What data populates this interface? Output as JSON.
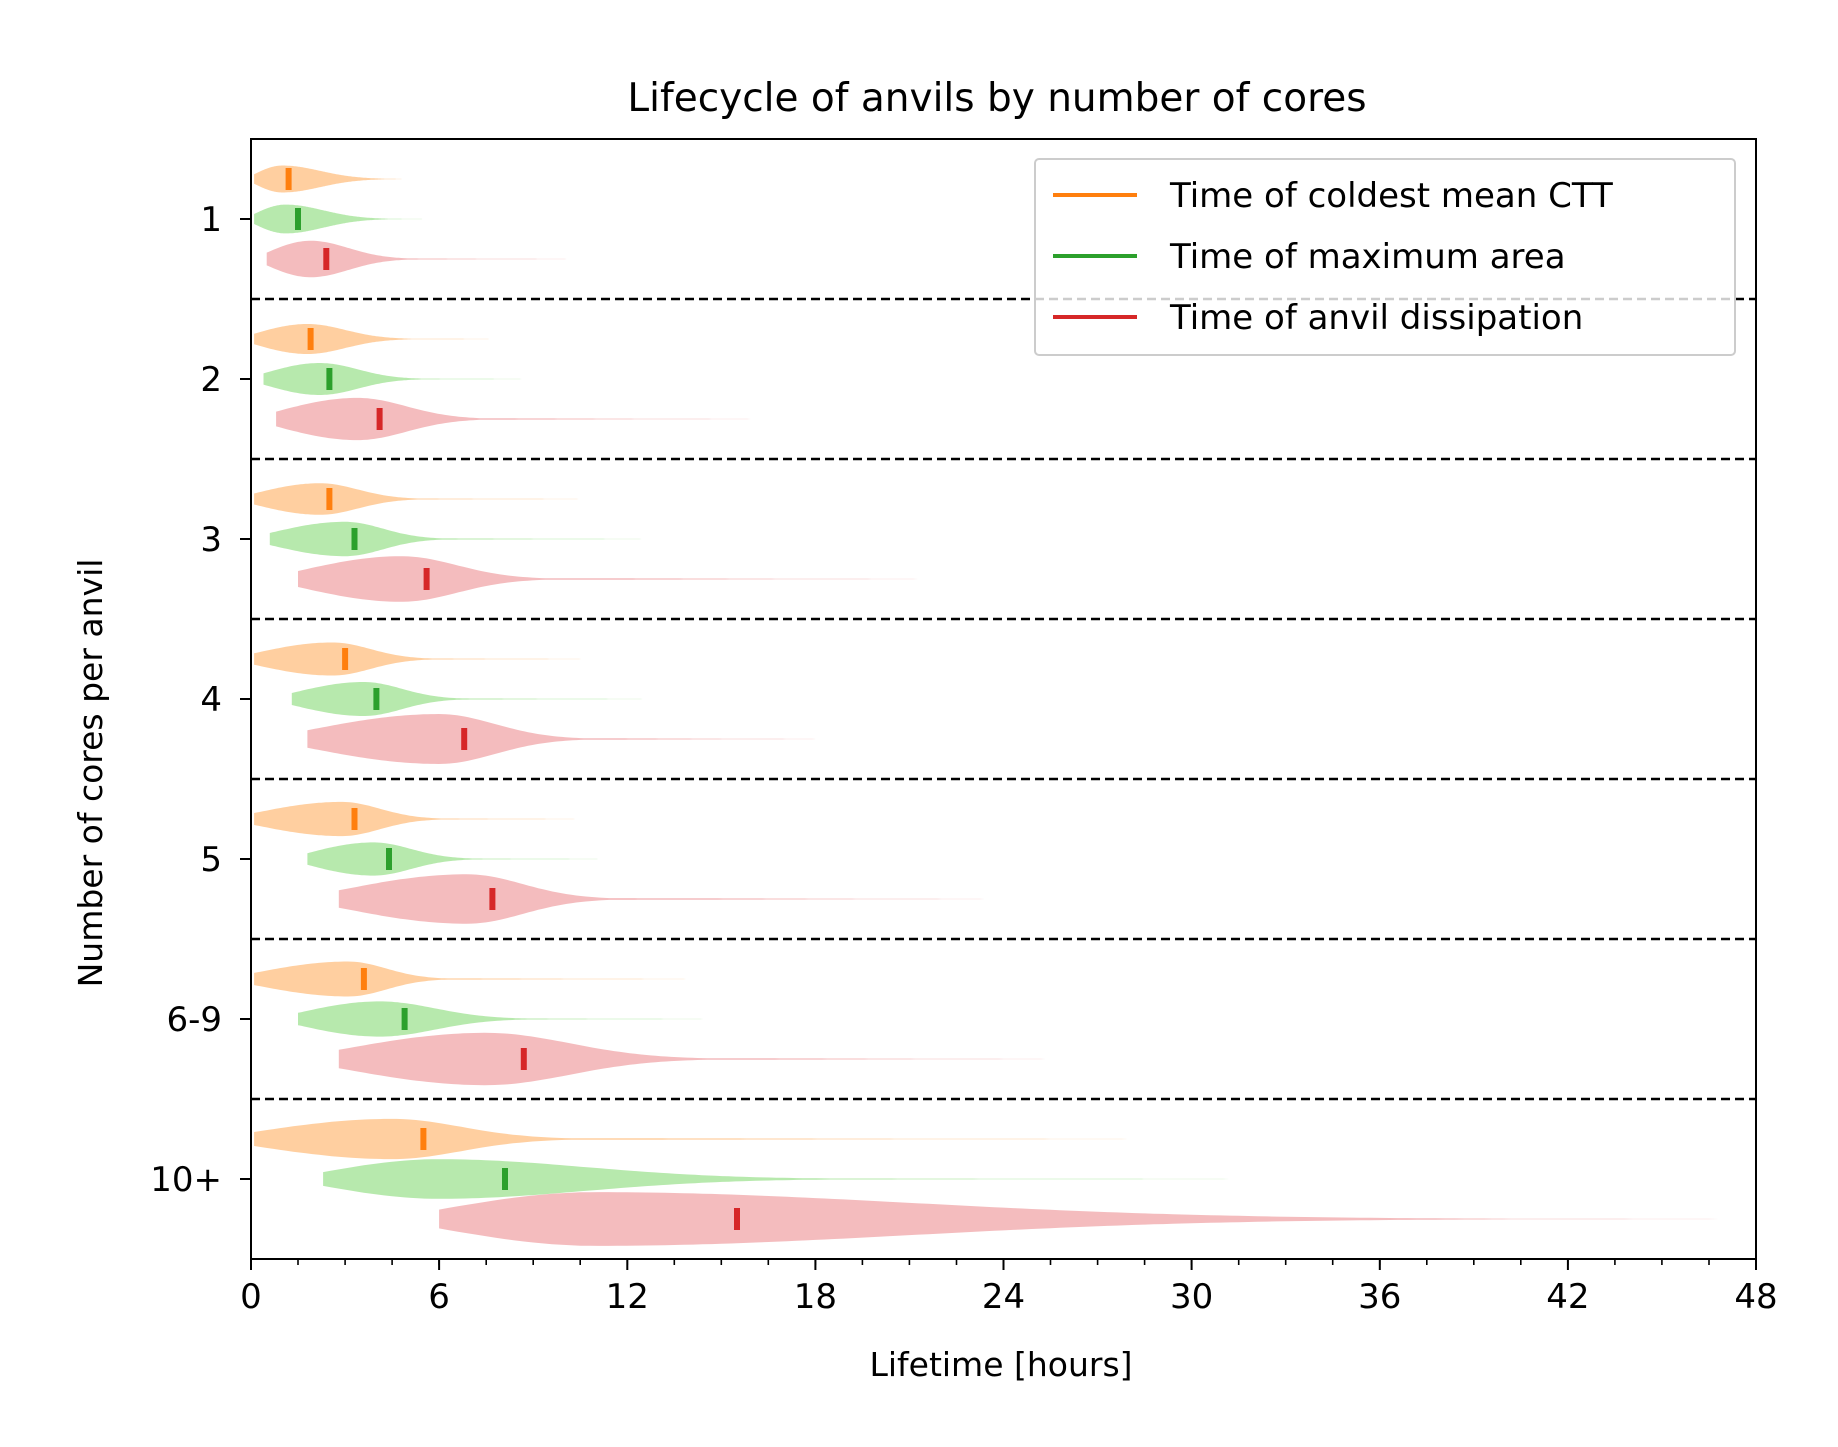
{
  "chart_data": {
    "type": "violin",
    "title": "Lifecycle of anvils by number of cores",
    "xlabel": "Lifetime [hours]",
    "ylabel": "Number of cores per anvil",
    "xlim": [
      0,
      48
    ],
    "xticks": [
      "0",
      "6",
      "12",
      "18",
      "24",
      "30",
      "36",
      "42",
      "48"
    ],
    "orientation": "horizontal",
    "group_separators": "dashed",
    "categories": [
      "1",
      "2",
      "3",
      "4",
      "5",
      "6-9",
      "10+"
    ],
    "legend": {
      "position": "top-right"
    },
    "series": [
      {
        "name": "Time of coldest mean CTT",
        "color": "#ff7f0e",
        "fill": "#ffbb78",
        "medians": [
          1.2,
          1.9,
          2.5,
          3.0,
          3.3,
          3.6,
          5.5
        ],
        "starts": [
          0.1,
          0.1,
          0.1,
          0.1,
          0.1,
          0.1,
          0.1
        ],
        "modes": [
          1.0,
          1.8,
          2.2,
          2.6,
          2.9,
          3.1,
          4.5
        ],
        "tail_ends": [
          4.8,
          8.0,
          11.0,
          11.0,
          10.8,
          14.5,
          29.0
        ]
      },
      {
        "name": "Time of maximum area",
        "color": "#2ca02c",
        "fill": "#98df8a",
        "medians": [
          1.5,
          2.5,
          3.3,
          4.0,
          4.4,
          4.9,
          8.1
        ],
        "starts": [
          0.1,
          0.4,
          0.6,
          1.3,
          1.8,
          1.5,
          2.3
        ],
        "modes": [
          1.1,
          2.2,
          3.0,
          3.6,
          3.9,
          4.1,
          6.0
        ],
        "tail_ends": [
          5.8,
          9.0,
          13.0,
          13.0,
          11.5,
          15.0,
          32.5
        ]
      },
      {
        "name": "Time of anvil dissipation",
        "color": "#d62728",
        "fill": "#f0a0a2",
        "medians": [
          2.4,
          4.1,
          5.6,
          6.8,
          7.7,
          8.7,
          15.5
        ],
        "starts": [
          0.5,
          0.8,
          1.5,
          1.8,
          2.8,
          2.8,
          6.0
        ],
        "modes": [
          1.9,
          3.4,
          4.8,
          6.0,
          6.9,
          7.5,
          11.0
        ],
        "tail_ends": [
          10.5,
          16.5,
          22.0,
          18.5,
          24.0,
          26.0,
          48.0
        ]
      }
    ]
  }
}
